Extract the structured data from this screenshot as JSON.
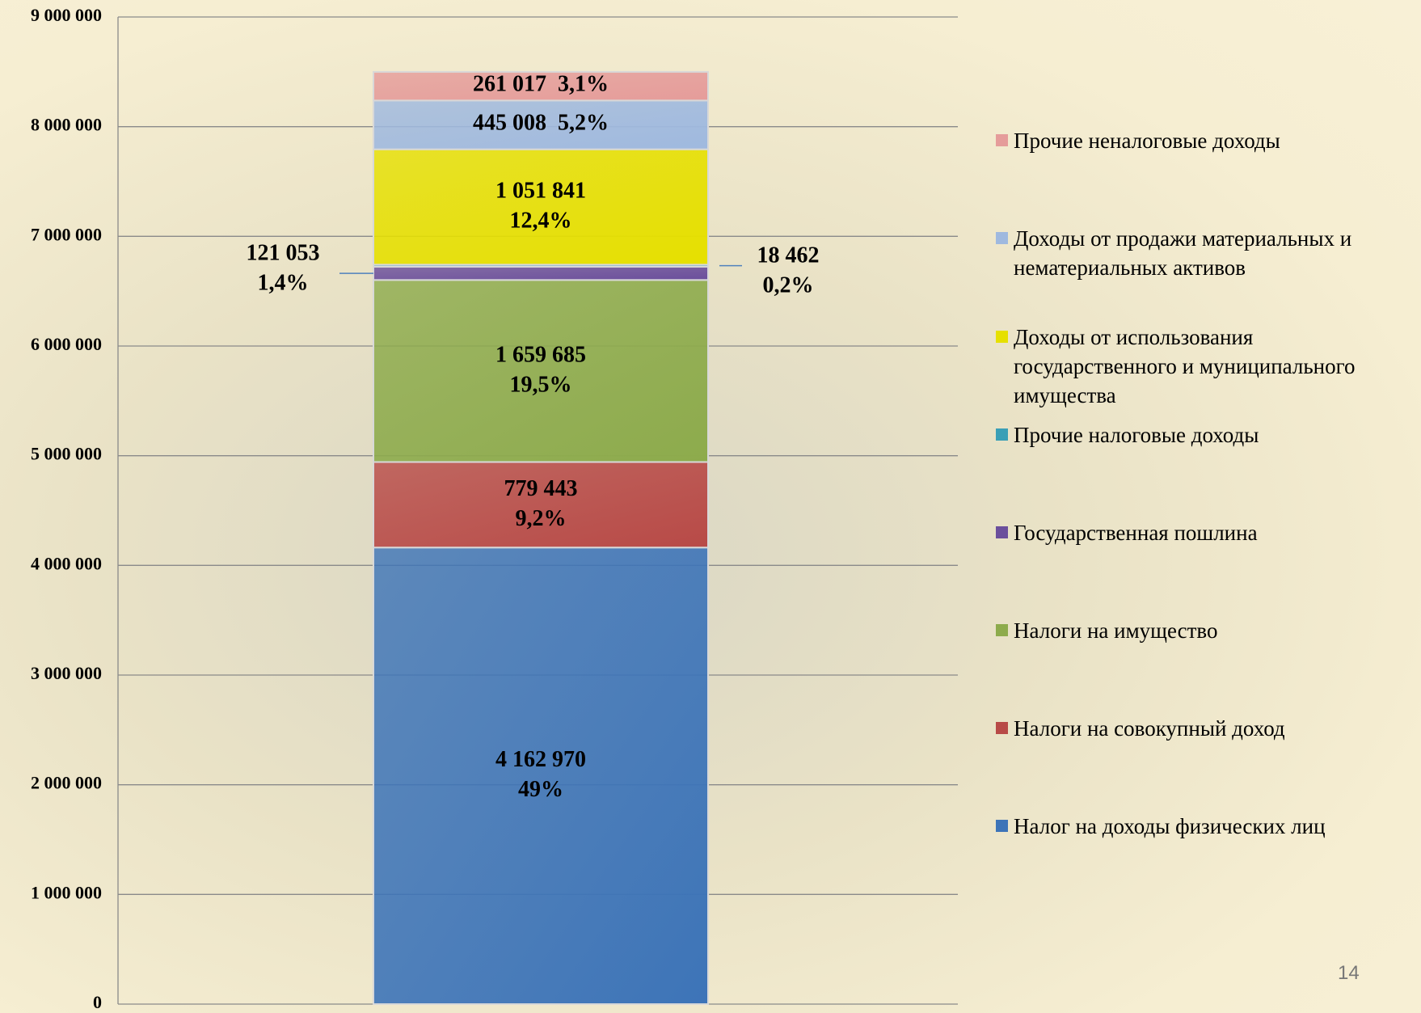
{
  "chart_data": {
    "type": "stacked-bar",
    "categories": [
      null
    ],
    "ylim": [
      0,
      9000000
    ],
    "yticks": [
      0,
      {
        "value": 1000000,
        "label": "1 000 000"
      },
      {
        "value": 2000000,
        "label": "2 000 000"
      },
      {
        "value": 3000000,
        "label": "3 000 000"
      },
      {
        "value": 4000000,
        "label": "4 000 000"
      },
      {
        "value": 5000000,
        "label": "5 000 000"
      },
      {
        "value": 6000000,
        "label": "6 000 000"
      },
      {
        "value": 7000000,
        "label": "7 000 000"
      },
      {
        "value": 8000000,
        "label": "8 000 000"
      },
      {
        "value": 9000000,
        "label": "9 000 000"
      }
    ],
    "grid": true,
    "legend": "right",
    "series": [
      {
        "name": "Налог на доходы физических лиц",
        "color": "#3d74b8",
        "values": [
          4162970
        ],
        "value_labels": [
          "4 162 970"
        ],
        "share_labels": [
          "49%"
        ]
      },
      {
        "name": "Налоги на совокупный доход",
        "color": "#b84a47",
        "values": [
          779443
        ],
        "value_labels": [
          "779 443"
        ],
        "share_labels": [
          "9,2%"
        ]
      },
      {
        "name": "Налоги на имущество",
        "color": "#8dab4c",
        "values": [
          1659685
        ],
        "value_labels": [
          "1 659 685"
        ],
        "share_labels": [
          "19,5%"
        ]
      },
      {
        "name": "Государственная пошлина",
        "color": "#6b4f9c",
        "values": [
          121053
        ],
        "value_labels": [
          "121 053"
        ],
        "share_labels": [
          "1,4%"
        ]
      },
      {
        "name": "Прочие налоговые доходы",
        "color": "#3a9fb6",
        "values": [
          18462
        ],
        "value_labels": [
          "18 462"
        ],
        "share_labels": [
          "0,2%"
        ]
      },
      {
        "name": "Доходы от использования государственного и муниципального имущества",
        "color": "#e6e000",
        "values": [
          1051841
        ],
        "value_labels": [
          "1 051 841"
        ],
        "share_labels": [
          "12,4%"
        ]
      },
      {
        "name": "Доходы от продажи материальных и нематериальных активов",
        "color": "#9fb9df",
        "values": [
          445008
        ],
        "value_labels": [
          "445 008"
        ],
        "share_labels": [
          "5,2%"
        ]
      },
      {
        "name": "Прочие неналоговые доходы",
        "color": "#e59c9a",
        "values": [
          261017
        ],
        "value_labels": [
          "261 017"
        ],
        "share_labels": [
          "3,1%"
        ]
      }
    ]
  },
  "page_number": "14"
}
